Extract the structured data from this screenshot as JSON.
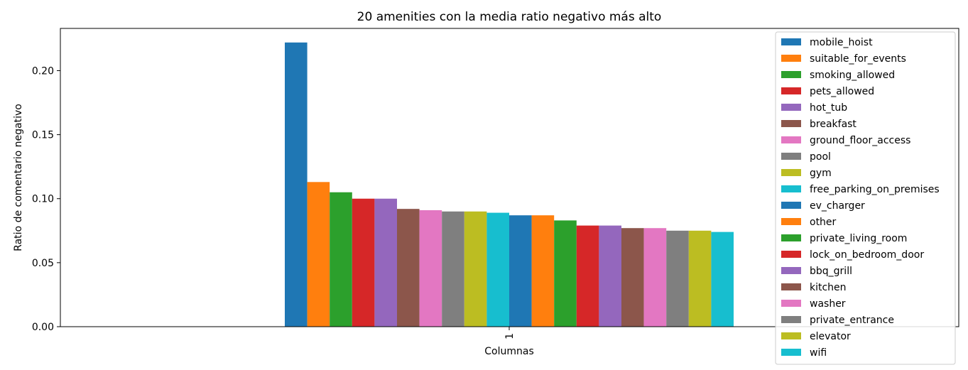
{
  "chart_data": {
    "type": "bar",
    "title": "20 amenities con la media ratio negativo más alto",
    "xlabel": "Columnas",
    "ylabel": "Ratio de comentario negativo",
    "categories": [
      "1"
    ],
    "ylim": [
      0,
      0.233
    ],
    "yticks": [
      0.0,
      0.05,
      0.1,
      0.15,
      0.2
    ],
    "ytick_labels": [
      "0.00",
      "0.05",
      "0.10",
      "0.15",
      "0.20"
    ],
    "grid": false,
    "legend_position": "upper right",
    "series": [
      {
        "name": "mobile_hoist",
        "value": 0.222,
        "color": "#1f77b4"
      },
      {
        "name": "suitable_for_events",
        "value": 0.113,
        "color": "#ff7f0e"
      },
      {
        "name": "smoking_allowed",
        "value": 0.105,
        "color": "#2ca02c"
      },
      {
        "name": "pets_allowed",
        "value": 0.1,
        "color": "#d62728"
      },
      {
        "name": "hot_tub",
        "value": 0.1,
        "color": "#9467bd"
      },
      {
        "name": "breakfast",
        "value": 0.092,
        "color": "#8c564b"
      },
      {
        "name": "ground_floor_access",
        "value": 0.091,
        "color": "#e377c2"
      },
      {
        "name": "pool",
        "value": 0.09,
        "color": "#7f7f7f"
      },
      {
        "name": "gym",
        "value": 0.09,
        "color": "#bcbd22"
      },
      {
        "name": "free_parking_on_premises",
        "value": 0.089,
        "color": "#17becf"
      },
      {
        "name": "ev_charger",
        "value": 0.087,
        "color": "#1f77b4"
      },
      {
        "name": "other",
        "value": 0.087,
        "color": "#ff7f0e"
      },
      {
        "name": "private_living_room",
        "value": 0.083,
        "color": "#2ca02c"
      },
      {
        "name": "lock_on_bedroom_door",
        "value": 0.079,
        "color": "#d62728"
      },
      {
        "name": "bbq_grill",
        "value": 0.079,
        "color": "#9467bd"
      },
      {
        "name": "kitchen",
        "value": 0.077,
        "color": "#8c564b"
      },
      {
        "name": "washer",
        "value": 0.077,
        "color": "#e377c2"
      },
      {
        "name": "private_entrance",
        "value": 0.075,
        "color": "#7f7f7f"
      },
      {
        "name": "elevator",
        "value": 0.075,
        "color": "#bcbd22"
      },
      {
        "name": "wifi",
        "value": 0.074,
        "color": "#17becf"
      }
    ]
  }
}
